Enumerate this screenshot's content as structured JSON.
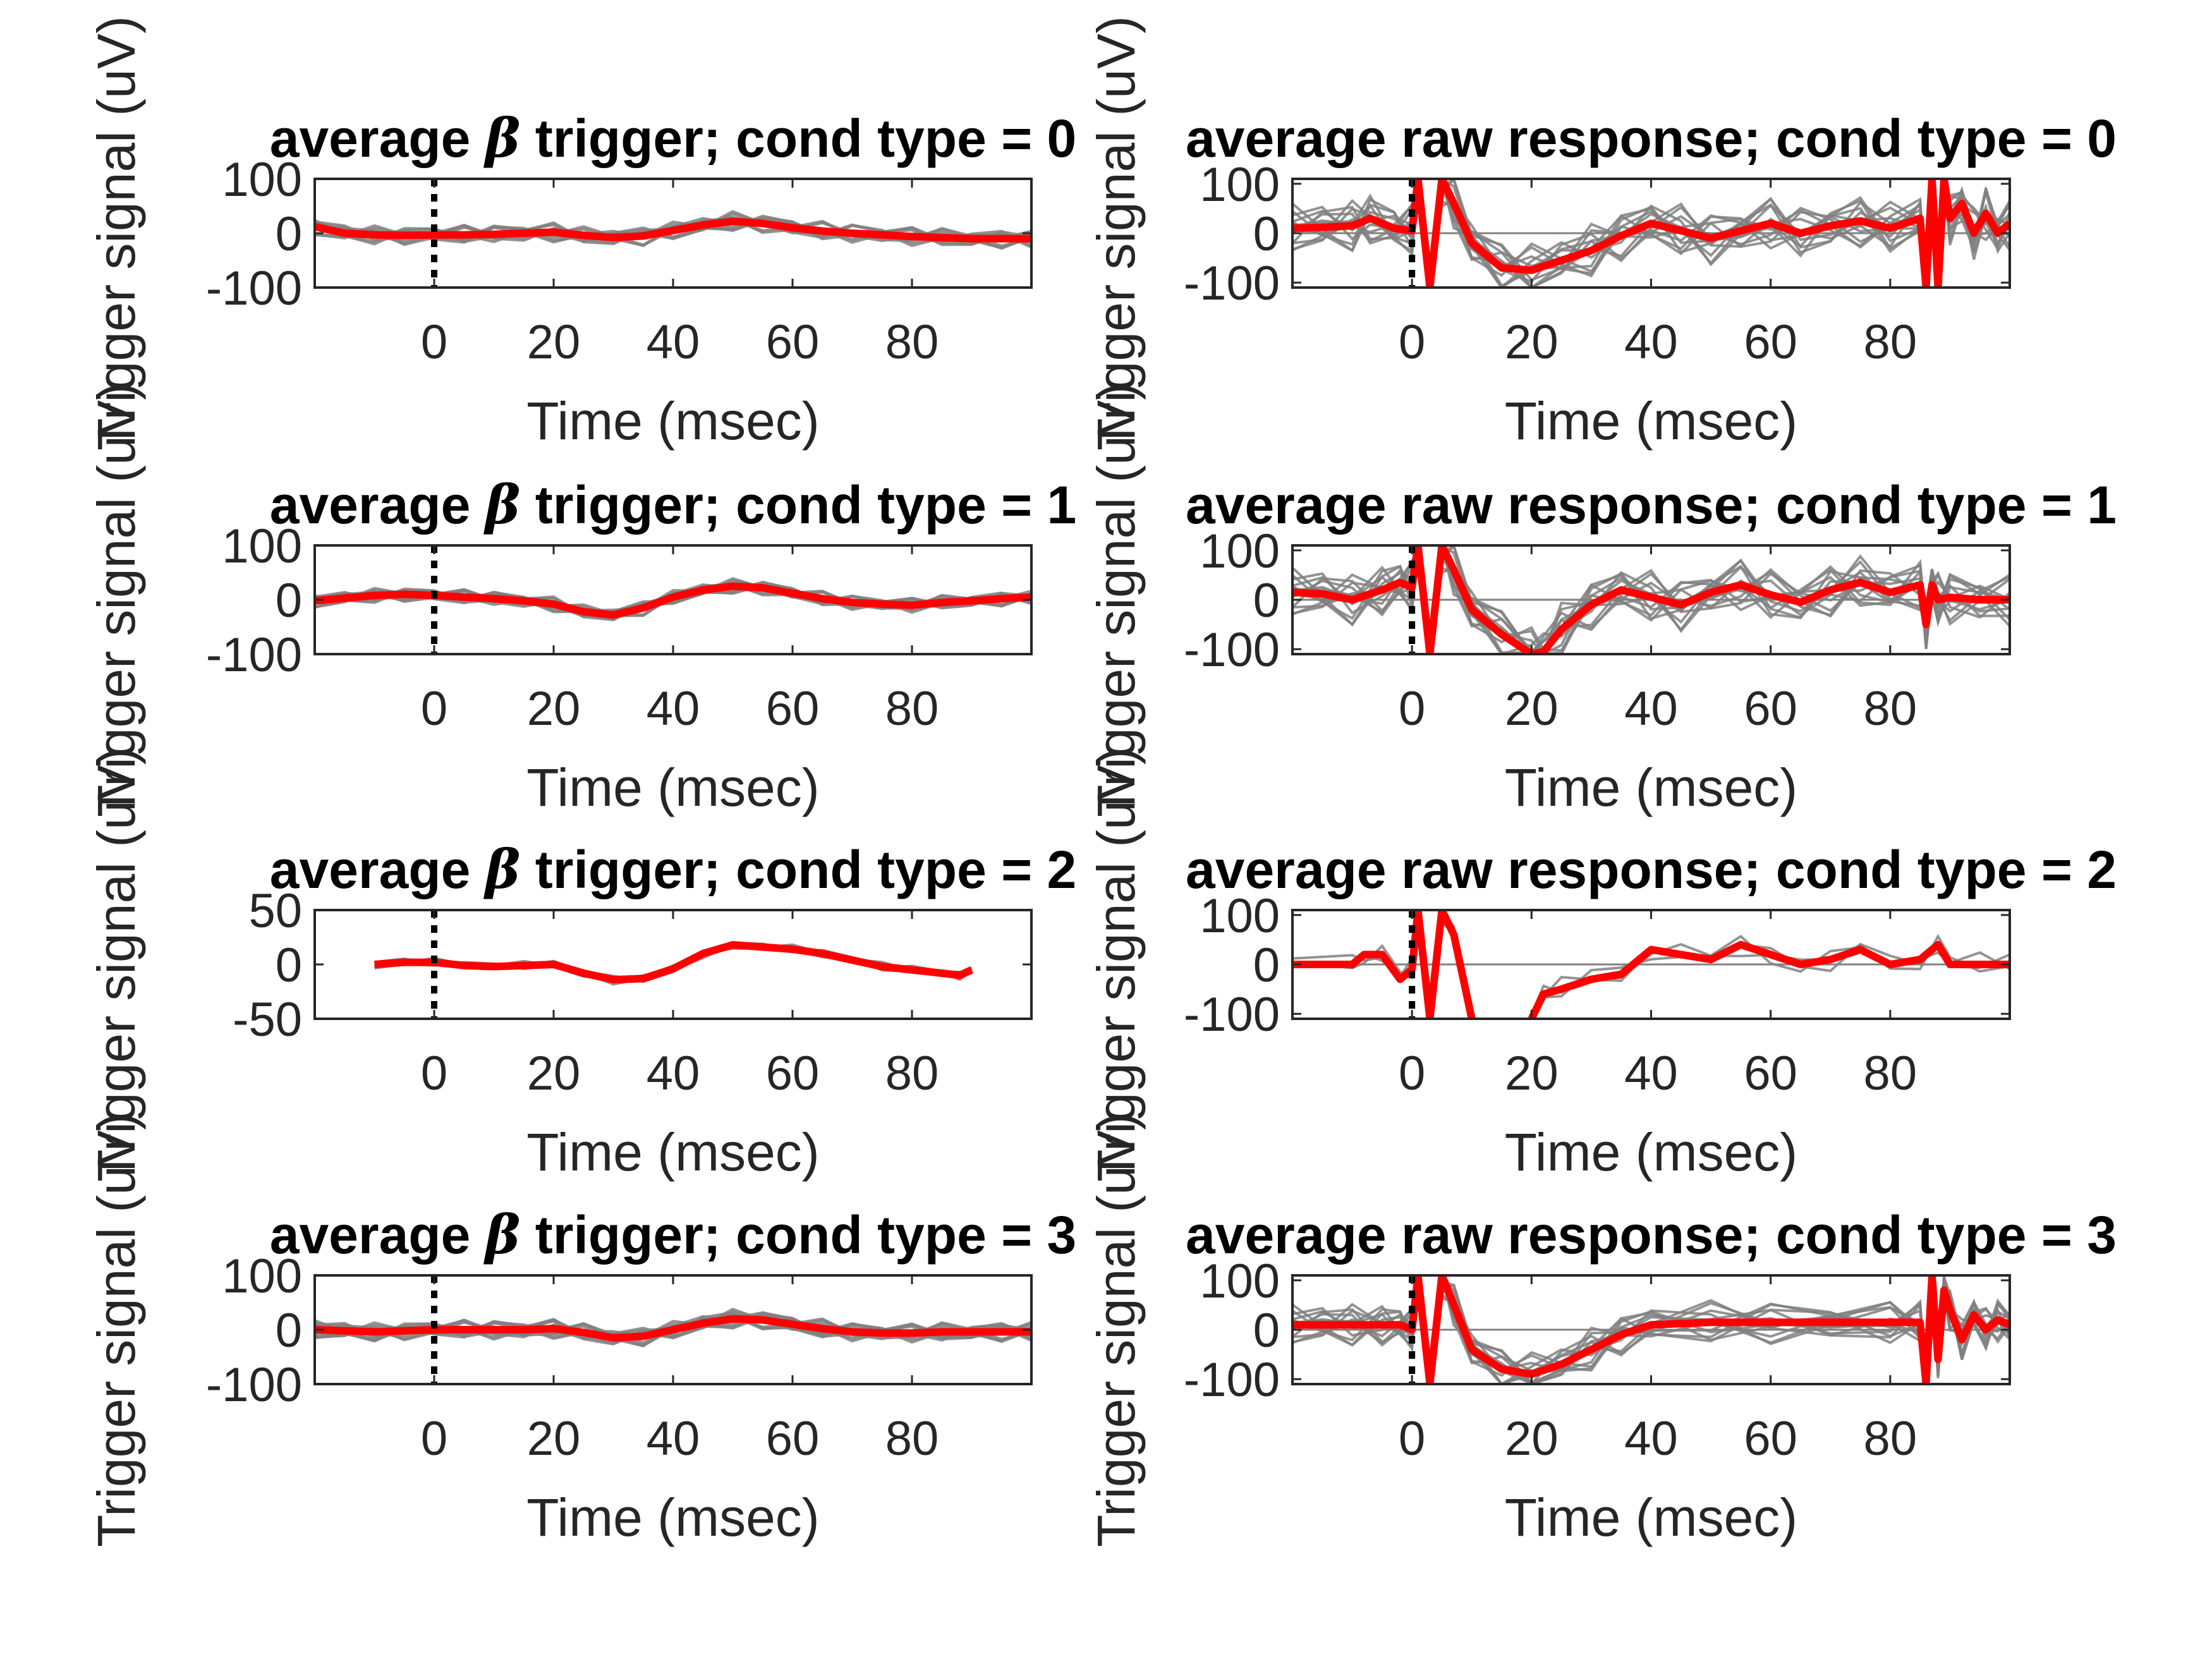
{
  "chart_data": [
    {
      "type": "line",
      "panel": "beta",
      "cond": 0,
      "title_prefix": "average ",
      "title_symbol": "β",
      "title_suffix": " trigger; cond type = 0",
      "xlabel": "Time (msec)",
      "ylabel": "Trigger signal (uV)",
      "xlim": [
        -20,
        100
      ],
      "ylim": [
        -100,
        100
      ],
      "xticks": [
        0,
        20,
        40,
        60,
        80
      ],
      "yticks": [
        -100,
        0,
        100
      ],
      "ytick_labels": [
        "-100",
        "0",
        "100"
      ],
      "onset_x": 0,
      "series": [
        {
          "role": "mean",
          "color": "#ff0000",
          "x": [
            -20,
            -15,
            -10,
            -5,
            0,
            5,
            10,
            15,
            20,
            25,
            30,
            35,
            40,
            45,
            50,
            55,
            60,
            65,
            70,
            75,
            80,
            85,
            90,
            95,
            100
          ],
          "y": [
            12,
            0,
            -3,
            -4,
            -3,
            -3,
            -2,
            0,
            2,
            -4,
            -8,
            -5,
            5,
            15,
            22,
            18,
            10,
            4,
            0,
            -3,
            -6,
            -8,
            -10,
            -10,
            -10
          ]
        },
        {
          "role": "trials",
          "color": "#808080",
          "spread": 18,
          "count": 10
        }
      ]
    },
    {
      "type": "line",
      "panel": "raw",
      "cond": 0,
      "title": "average raw response; cond type = 0",
      "xlabel": "Time (msec)",
      "ylabel": "Trigger signal (uV)",
      "xlim": [
        -20,
        100
      ],
      "ylim": [
        -110,
        110
      ],
      "xticks": [
        0,
        20,
        40,
        60,
        80
      ],
      "yticks": [
        -100,
        0,
        100
      ],
      "ytick_labels": [
        "-100",
        "0",
        "100"
      ],
      "onset_x": 0,
      "series": [
        {
          "role": "mean",
          "color": "#ff0000",
          "x": [
            -20,
            -15,
            -10,
            -7,
            -3,
            0,
            1,
            3,
            5,
            7,
            10,
            15,
            20,
            25,
            30,
            35,
            40,
            45,
            50,
            55,
            60,
            65,
            70,
            75,
            80,
            85,
            86,
            87,
            88,
            89,
            90,
            92,
            94,
            96,
            98,
            100
          ],
          "y": [
            10,
            12,
            15,
            30,
            10,
            5,
            110,
            -110,
            110,
            60,
            -20,
            -70,
            -75,
            -55,
            -35,
            -5,
            20,
            5,
            -10,
            5,
            20,
            0,
            15,
            25,
            10,
            30,
            -110,
            110,
            -110,
            110,
            30,
            60,
            0,
            40,
            0,
            20
          ]
        },
        {
          "role": "trials",
          "color": "#808080",
          "spread": 55,
          "count": 14
        }
      ]
    },
    {
      "type": "line",
      "panel": "beta",
      "cond": 1,
      "title_prefix": "average ",
      "title_symbol": "β",
      "title_suffix": " trigger; cond type = 1",
      "xlabel": "Time (msec)",
      "ylabel": "Trigger signal (uV)",
      "xlim": [
        -20,
        100
      ],
      "ylim": [
        -100,
        100
      ],
      "xticks": [
        0,
        20,
        40,
        60,
        80
      ],
      "yticks": [
        -100,
        0,
        100
      ],
      "ytick_labels": [
        "-100",
        "0",
        "100"
      ],
      "onset_x": 0,
      "series": [
        {
          "role": "mean",
          "color": "#ff0000",
          "x": [
            -20,
            -15,
            -10,
            -5,
            0,
            5,
            10,
            15,
            20,
            25,
            30,
            35,
            40,
            45,
            50,
            55,
            60,
            65,
            70,
            75,
            80,
            85,
            90,
            95,
            100
          ],
          "y": [
            -2,
            3,
            8,
            10,
            8,
            5,
            2,
            -2,
            -8,
            -22,
            -28,
            -15,
            5,
            18,
            25,
            22,
            12,
            2,
            -5,
            -8,
            -10,
            -5,
            -2,
            2,
            5
          ]
        },
        {
          "role": "trials",
          "color": "#808080",
          "spread": 14,
          "count": 10
        }
      ]
    },
    {
      "type": "line",
      "panel": "raw",
      "cond": 1,
      "title": "average raw response; cond type = 1",
      "xlabel": "Time (msec)",
      "ylabel": "Trigger signal (uV)",
      "xlim": [
        -20,
        100
      ],
      "ylim": [
        -110,
        110
      ],
      "xticks": [
        0,
        20,
        40,
        60,
        80
      ],
      "yticks": [
        -100,
        0,
        100
      ],
      "ytick_labels": [
        "-100",
        "0",
        "100"
      ],
      "onset_x": 0,
      "series": [
        {
          "role": "mean",
          "color": "#ff0000",
          "x": [
            -20,
            -15,
            -10,
            -5,
            -2,
            0,
            1,
            3,
            5,
            7,
            10,
            15,
            20,
            22,
            25,
            30,
            35,
            40,
            45,
            50,
            55,
            60,
            65,
            70,
            75,
            80,
            85,
            86,
            87,
            88,
            90,
            95,
            100
          ],
          "y": [
            15,
            12,
            0,
            20,
            35,
            25,
            110,
            -110,
            110,
            60,
            -20,
            -70,
            -110,
            -105,
            -60,
            -10,
            20,
            5,
            -10,
            15,
            30,
            10,
            -5,
            20,
            35,
            15,
            30,
            -50,
            30,
            0,
            5,
            0,
            0
          ]
        },
        {
          "role": "trials",
          "color": "#808080",
          "spread": 55,
          "count": 14
        }
      ]
    },
    {
      "type": "line",
      "panel": "beta",
      "cond": 2,
      "title_prefix": "average ",
      "title_symbol": "β",
      "title_suffix": " trigger; cond type = 2",
      "xlabel": "Time (msec)",
      "ylabel": "Trigger signal (uV)",
      "xlim": [
        -20,
        100
      ],
      "ylim": [
        -50,
        50
      ],
      "xticks": [
        0,
        20,
        40,
        60,
        80
      ],
      "yticks": [
        -50,
        0,
        50
      ],
      "ytick_labels": [
        "-50",
        "0",
        "50"
      ],
      "onset_x": 0,
      "series": [
        {
          "role": "mean",
          "color": "#ff0000",
          "x": [
            -10,
            -5,
            0,
            5,
            10,
            15,
            20,
            25,
            30,
            35,
            40,
            45,
            50,
            55,
            60,
            65,
            70,
            75,
            80,
            85,
            88,
            90
          ],
          "y": [
            0,
            2,
            2,
            -1,
            -2,
            -1,
            0,
            -8,
            -14,
            -13,
            -4,
            10,
            18,
            16,
            14,
            10,
            4,
            -2,
            -5,
            -8,
            -10,
            -5
          ]
        },
        {
          "role": "trials",
          "color": "#808080",
          "spread": 4,
          "count": 4
        }
      ]
    },
    {
      "type": "line",
      "panel": "raw",
      "cond": 2,
      "title": "average raw response; cond type = 2",
      "xlabel": "Time (msec)",
      "ylabel": "Trigger signal (uV)",
      "xlim": [
        -20,
        100
      ],
      "ylim": [
        -110,
        110
      ],
      "xticks": [
        0,
        20,
        40,
        60,
        80
      ],
      "yticks": [
        -100,
        0,
        100
      ],
      "ytick_labels": [
        "-100",
        "0",
        "100"
      ],
      "onset_x": 0,
      "series": [
        {
          "role": "mean",
          "color": "#ff0000",
          "x": [
            -20,
            -10,
            -8,
            -5,
            -2,
            0,
            1,
            3,
            5,
            7,
            10,
            null,
            20,
            22,
            25,
            30,
            35,
            40,
            45,
            50,
            55,
            60,
            65,
            70,
            75,
            80,
            85,
            88,
            90,
            95,
            100
          ],
          "y": [
            0,
            0,
            20,
            20,
            -30,
            -10,
            110,
            -110,
            110,
            60,
            -110,
            null,
            -110,
            -60,
            -50,
            -30,
            -20,
            30,
            20,
            10,
            40,
            20,
            0,
            10,
            30,
            0,
            10,
            40,
            0,
            0,
            0
          ]
        },
        {
          "role": "trials",
          "color": "#808080",
          "spread": 25,
          "count": 3
        }
      ]
    },
    {
      "type": "line",
      "panel": "beta",
      "cond": 3,
      "title_prefix": "average ",
      "title_symbol": "β",
      "title_suffix": " trigger; cond type = 3",
      "xlabel": "Time (msec)",
      "ylabel": "Trigger signal (uV)",
      "xlim": [
        -20,
        100
      ],
      "ylim": [
        -100,
        100
      ],
      "xticks": [
        0,
        20,
        40,
        60,
        80
      ],
      "yticks": [
        -100,
        0,
        100
      ],
      "ytick_labels": [
        "-100",
        "0",
        "100"
      ],
      "onset_x": 0,
      "series": [
        {
          "role": "mean",
          "color": "#ff0000",
          "x": [
            -20,
            -15,
            -10,
            -5,
            0,
            5,
            10,
            15,
            20,
            25,
            30,
            35,
            40,
            45,
            50,
            55,
            60,
            65,
            70,
            75,
            80,
            85,
            90,
            95,
            100
          ],
          "y": [
            0,
            -2,
            -4,
            -2,
            0,
            0,
            0,
            0,
            2,
            -5,
            -15,
            -12,
            0,
            12,
            20,
            18,
            10,
            2,
            -4,
            -6,
            -6,
            -4,
            -4,
            -4,
            -4
          ]
        },
        {
          "role": "trials",
          "color": "#808080",
          "spread": 18,
          "count": 12
        }
      ]
    },
    {
      "type": "line",
      "panel": "raw",
      "cond": 3,
      "title": "average raw response; cond type = 3",
      "xlabel": "Time (msec)",
      "ylabel": "Trigger signal (uV)",
      "xlim": [
        -20,
        100
      ],
      "ylim": [
        -110,
        110
      ],
      "xticks": [
        0,
        20,
        40,
        60,
        80
      ],
      "yticks": [
        -100,
        0,
        100
      ],
      "ytick_labels": [
        "-100",
        "0",
        "100"
      ],
      "onset_x": 0,
      "series": [
        {
          "role": "mean",
          "color": "#ff0000",
          "x": [
            -20,
            -15,
            -10,
            -5,
            -2,
            0,
            1,
            3,
            5,
            7,
            10,
            15,
            20,
            25,
            30,
            35,
            40,
            50,
            60,
            70,
            80,
            85,
            86,
            87,
            88,
            89,
            90,
            92,
            94,
            96,
            98,
            100
          ],
          "y": [
            10,
            10,
            10,
            10,
            10,
            0,
            110,
            -110,
            110,
            50,
            -40,
            -80,
            -90,
            -70,
            -40,
            -10,
            10,
            15,
            15,
            15,
            15,
            15,
            -110,
            110,
            -60,
            80,
            40,
            -20,
            30,
            0,
            20,
            10
          ]
        },
        {
          "role": "trials",
          "color": "#808080",
          "spread": 45,
          "count": 14
        }
      ]
    }
  ]
}
